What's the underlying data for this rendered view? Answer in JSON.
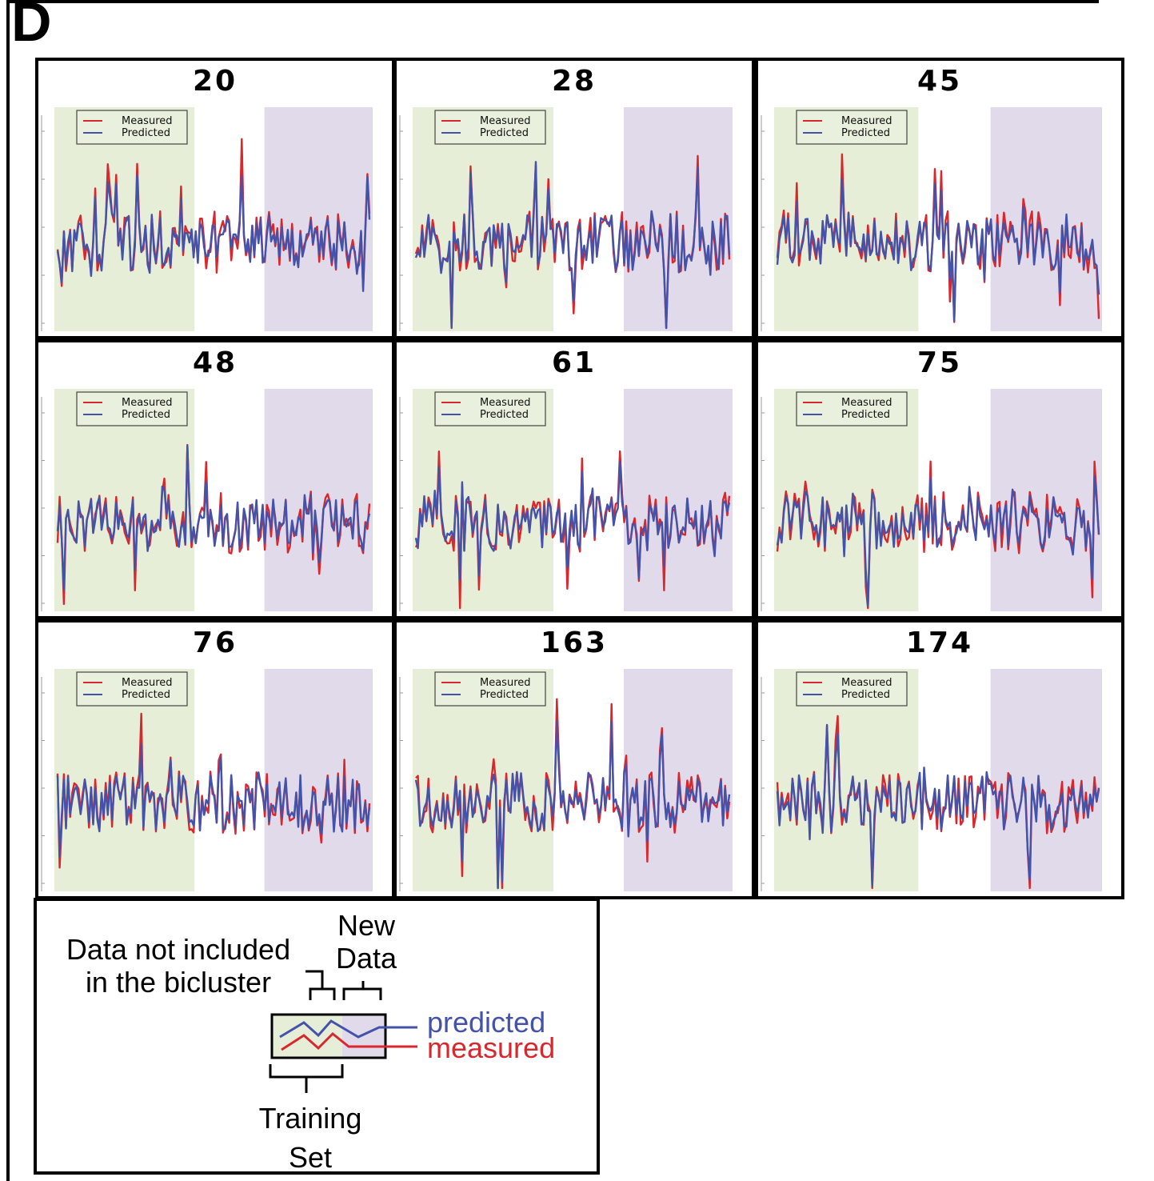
{
  "figure": {
    "panel_letter": "D"
  },
  "colors": {
    "measured": "#d8282e",
    "predicted": "#4452aa",
    "training_region": "#e6eed8",
    "new_data_region": "#e1daeb"
  },
  "chart_data": [
    {
      "type": "line",
      "title": "20",
      "series": [
        {
          "name": "Measured"
        },
        {
          "name": "Predicted"
        }
      ]
    },
    {
      "type": "line",
      "title": "28",
      "series": [
        {
          "name": "Measured"
        },
        {
          "name": "Predicted"
        }
      ]
    },
    {
      "type": "line",
      "title": "45",
      "series": [
        {
          "name": "Measured"
        },
        {
          "name": "Predicted"
        }
      ]
    },
    {
      "type": "line",
      "title": "48",
      "series": [
        {
          "name": "Measured"
        },
        {
          "name": "Predicted"
        }
      ]
    },
    {
      "type": "line",
      "title": "61",
      "series": [
        {
          "name": "Measured"
        },
        {
          "name": "Predicted"
        }
      ]
    },
    {
      "type": "line",
      "title": "75",
      "series": [
        {
          "name": "Measured"
        },
        {
          "name": "Predicted"
        }
      ]
    },
    {
      "type": "line",
      "title": "76",
      "series": [
        {
          "name": "Measured"
        },
        {
          "name": "Predicted"
        }
      ]
    },
    {
      "type": "line",
      "title": "163",
      "series": [
        {
          "name": "Measured"
        },
        {
          "name": "Predicted"
        }
      ]
    },
    {
      "type": "line",
      "title": "174",
      "series": [
        {
          "name": "Measured"
        },
        {
          "name": "Predicted"
        }
      ]
    }
  ],
  "key": {
    "not_included_line1": "Data not included",
    "not_included_line2": "in the bicluster",
    "new_line1": "New",
    "new_line2": "Data",
    "training_line1": "Training",
    "training_line2": "Set",
    "predicted": "predicted",
    "measured": "measured"
  }
}
